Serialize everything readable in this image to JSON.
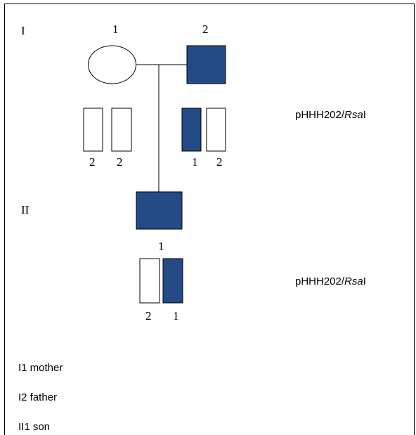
{
  "colors": {
    "affected": "#254b87",
    "unaffected": "#ffffff",
    "outline": "#000000"
  },
  "generations": {
    "gen1": "I",
    "gen2": "II"
  },
  "individuals": {
    "mother_number": "1",
    "father_number": "2",
    "son_number": "1"
  },
  "alleles": {
    "mother_a": "2",
    "mother_b": "2",
    "father_a": "1",
    "father_b": "2",
    "son_a": "2",
    "son_b": "1"
  },
  "probe_labels": {
    "gen1_prefix": "pHHH202/",
    "gen1_italic": "Rsa",
    "gen1_suffix": "I",
    "gen2_prefix": "pHHH202/",
    "gen2_italic": "Rsa",
    "gen2_suffix": "I"
  },
  "legend": {
    "line1": "I1 mother",
    "line2": "I2 father",
    "line3": "II1 son"
  }
}
